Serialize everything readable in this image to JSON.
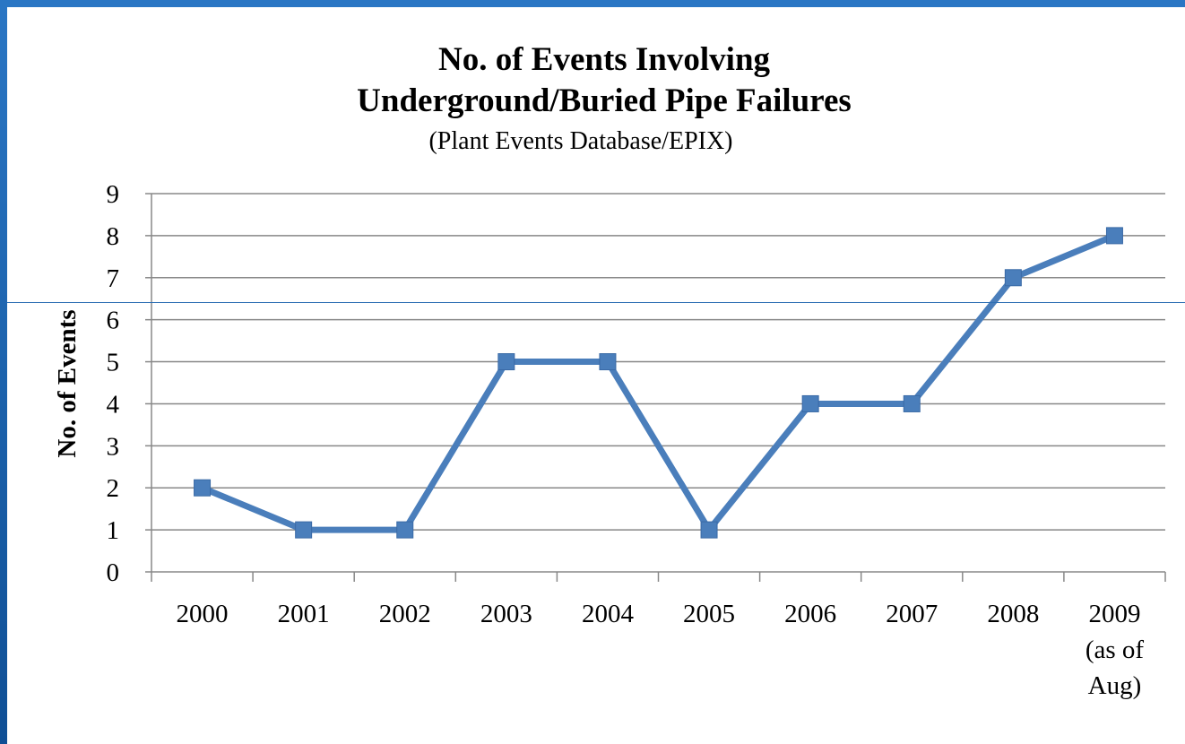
{
  "chart_data": {
    "type": "line",
    "title": [
      "No. of Events Involving",
      "Underground/Buried Pipe Failures"
    ],
    "subtitle": "(Plant Events Database/EPIX)",
    "xlabel": "",
    "ylabel": "No. of Events",
    "categories": [
      [
        "2000"
      ],
      [
        "2001"
      ],
      [
        "2002"
      ],
      [
        "2003"
      ],
      [
        "2004"
      ],
      [
        "2005"
      ],
      [
        "2006"
      ],
      [
        "2007"
      ],
      [
        "2008"
      ],
      [
        "2009",
        "(as of",
        "Aug)"
      ]
    ],
    "series": [
      {
        "values": [
          2,
          1,
          1,
          5,
          5,
          1,
          4,
          4,
          7,
          8
        ],
        "color": "#4a7ebb",
        "marker": "square"
      }
    ],
    "ylim": [
      0,
      9
    ],
    "yticks": [
      0,
      1,
      2,
      3,
      4,
      5,
      6,
      7,
      8,
      9
    ],
    "grid": true,
    "legend": "none"
  },
  "colors": {
    "frame": "#1a5fa8",
    "series": "#4a7ebb",
    "gridline": "#888888"
  }
}
